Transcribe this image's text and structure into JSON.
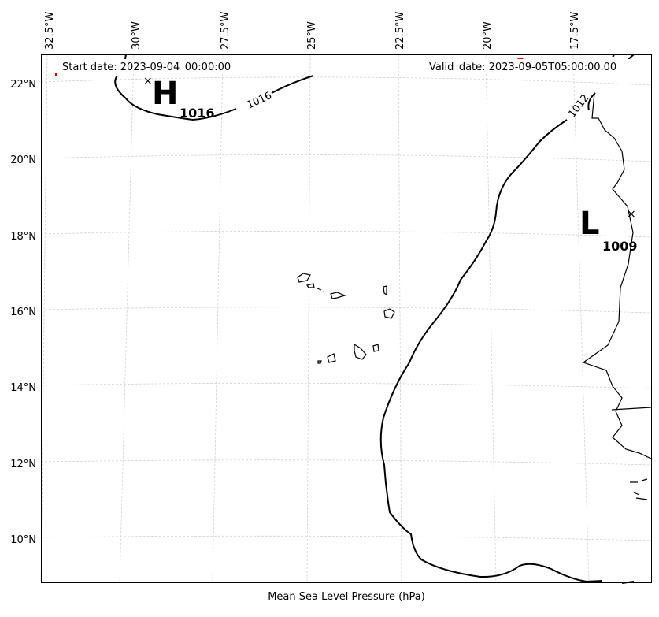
{
  "map": {
    "start_date": "Start date: 2023-09-04_00:00:00",
    "valid_date": "Valid_date: 2023-09-05T05:00:00.00",
    "xlabel": "Mean Sea Level Pressure (hPa)",
    "lon_ticks": [
      "32.5°W",
      "30°W",
      "27.5°W",
      "25°W",
      "22.5°W",
      "20°W",
      "17.5°W"
    ],
    "lat_ticks": [
      "22°N",
      "20°N",
      "18°N",
      "16°N",
      "14°N",
      "12°N",
      "10°N"
    ],
    "contour_labels": [
      "1016",
      "1012"
    ],
    "high": {
      "symbol": "H",
      "value": "1016"
    },
    "low": {
      "symbol": "L",
      "value": "1009"
    }
  }
}
